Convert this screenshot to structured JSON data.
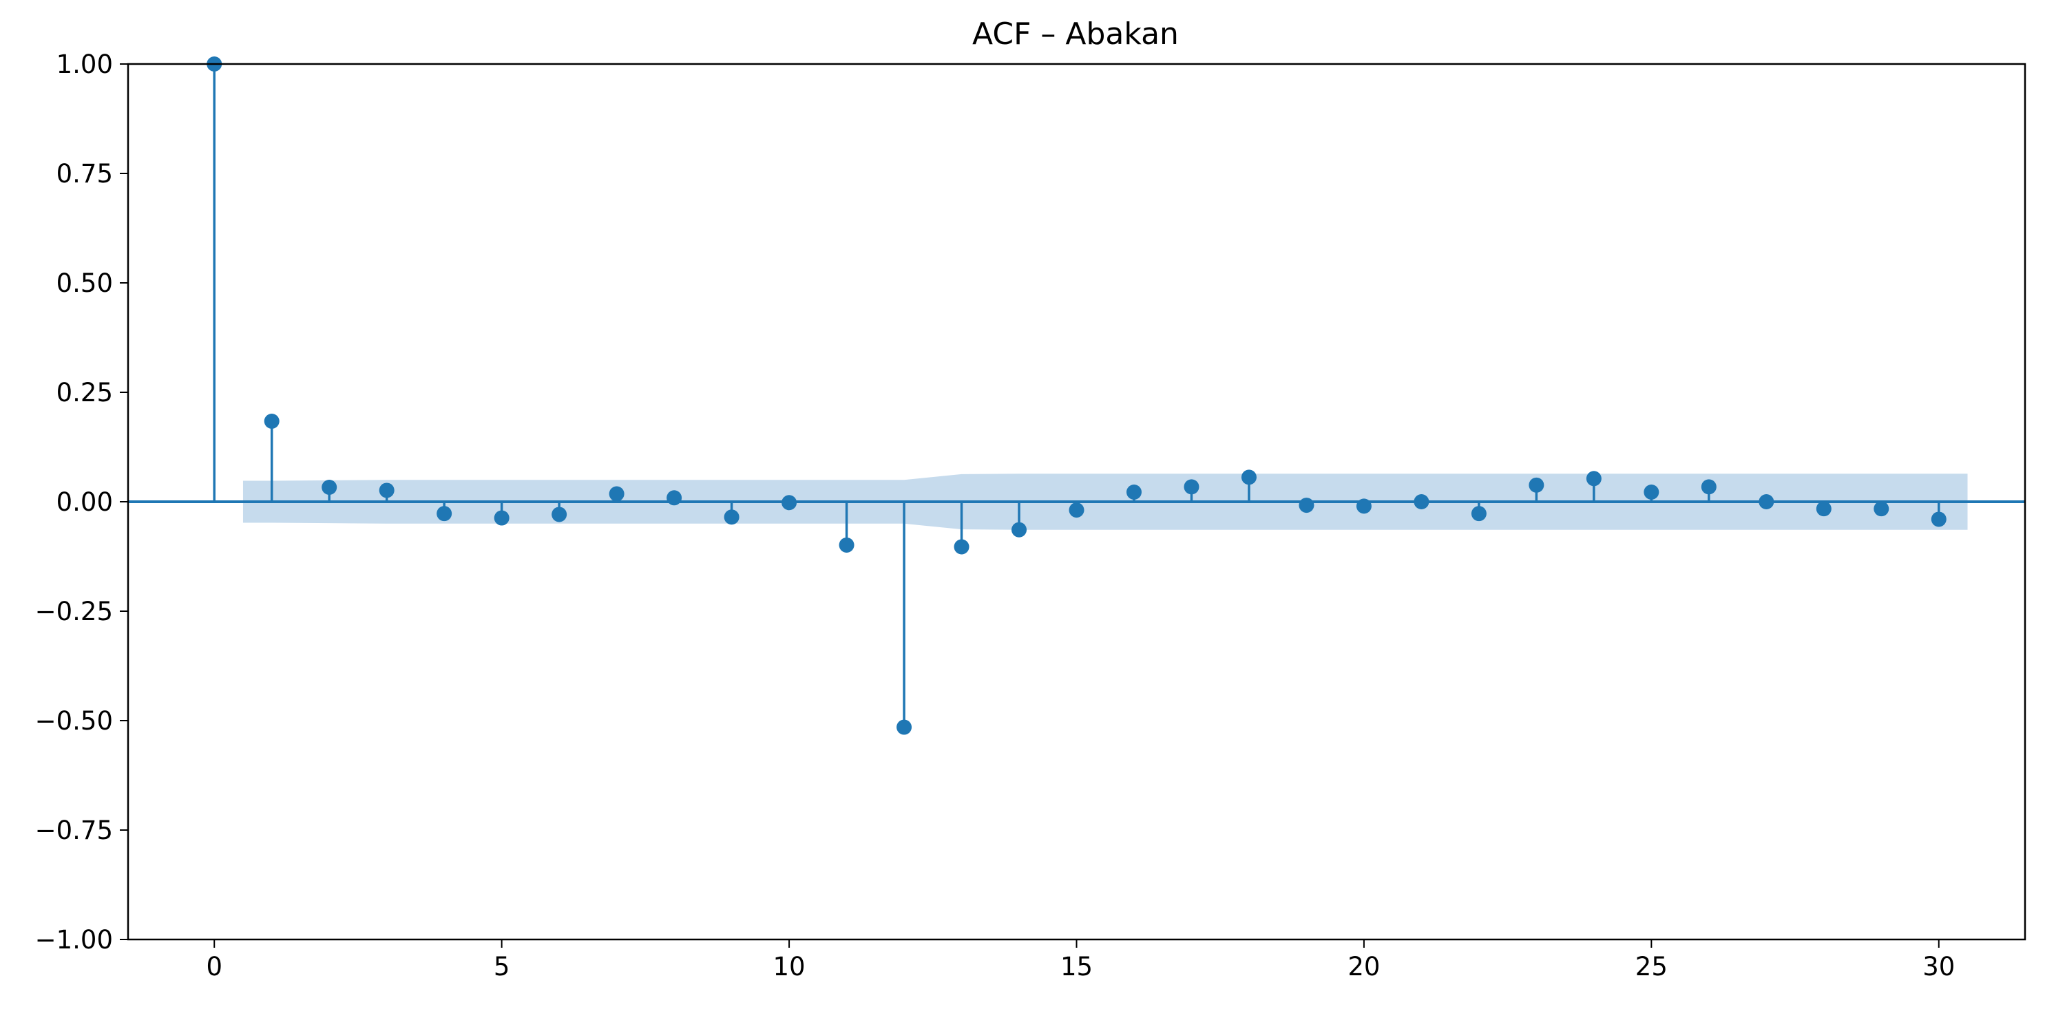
{
  "chart_data": {
    "type": "scatter",
    "title": "ACF – Abakan",
    "xlabel": "",
    "ylabel": "",
    "xlim": [
      -1.5,
      31.5
    ],
    "ylim": [
      -1.0,
      1.0
    ],
    "xticks": [
      0,
      5,
      10,
      15,
      20,
      25,
      30
    ],
    "xtick_labels": [
      "0",
      "5",
      "10",
      "15",
      "20",
      "25",
      "30"
    ],
    "yticks": [
      1.0,
      0.75,
      0.5,
      0.25,
      0.0,
      -0.25,
      -0.5,
      -0.75,
      -1.0
    ],
    "ytick_labels": [
      "1.00",
      "0.75",
      "0.50",
      "0.25",
      "0.00",
      "−0.25",
      "−0.50",
      "−0.75",
      "−1.00"
    ],
    "grid": false,
    "lags": [
      0,
      1,
      2,
      3,
      4,
      5,
      6,
      7,
      8,
      9,
      10,
      11,
      12,
      13,
      14,
      15,
      16,
      17,
      18,
      19,
      20,
      21,
      22,
      23,
      24,
      25,
      26,
      27,
      28,
      29,
      30
    ],
    "acf": [
      1.0,
      0.184,
      0.033,
      0.026,
      -0.027,
      -0.037,
      -0.029,
      0.018,
      0.009,
      -0.035,
      -0.002,
      -0.099,
      -0.515,
      -0.103,
      -0.064,
      -0.019,
      0.022,
      0.034,
      0.056,
      -0.008,
      -0.01,
      0.0,
      -0.027,
      0.038,
      0.053,
      0.022,
      0.034,
      0.0,
      -0.016,
      -0.016,
      -0.04
    ],
    "confidence_band": {
      "lags": [
        0.5,
        1,
        2,
        3,
        4,
        5,
        6,
        7,
        8,
        9,
        10,
        11,
        12,
        13,
        14,
        15,
        16,
        17,
        18,
        19,
        20,
        21,
        22,
        23,
        24,
        25,
        26,
        27,
        28,
        29,
        30,
        30.5
      ],
      "half_width": [
        0.048,
        0.048,
        0.049,
        0.05,
        0.05,
        0.05,
        0.05,
        0.05,
        0.05,
        0.05,
        0.05,
        0.05,
        0.05,
        0.063,
        0.064,
        0.064,
        0.064,
        0.064,
        0.064,
        0.064,
        0.064,
        0.064,
        0.064,
        0.064,
        0.064,
        0.064,
        0.064,
        0.064,
        0.064,
        0.064,
        0.064,
        0.064
      ]
    },
    "colors": {
      "series": "#1f77b4",
      "band": "#c6dbed",
      "axes": "#000000"
    }
  }
}
